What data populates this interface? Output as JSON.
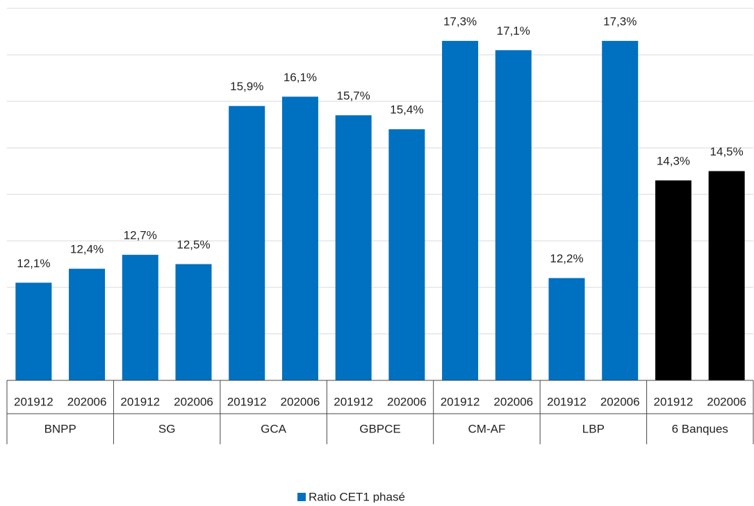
{
  "chart_data": {
    "type": "bar",
    "categories": [
      "201912",
      "202006",
      "201912",
      "202006",
      "201912",
      "202006",
      "201912",
      "202006",
      "201912",
      "202006",
      "201912",
      "202006",
      "201912",
      "202006"
    ],
    "groups": [
      "BNPP",
      "SG",
      "GCA",
      "GBPCE",
      "CM-AF",
      "LBP",
      "6 Banques"
    ],
    "series": [
      {
        "name": "Ratio CET1 phasé",
        "color": "#0070c0",
        "values": [
          12.1,
          12.4,
          12.7,
          12.5,
          15.9,
          16.1,
          15.7,
          15.4,
          17.3,
          17.1,
          12.2,
          17.3,
          14.3,
          14.5
        ],
        "value_labels": [
          "12,1%",
          "12,4%",
          "12,7%",
          "12,5%",
          "15,9%",
          "16,1%",
          "15,7%",
          "15,4%",
          "17,3%",
          "17,1%",
          "12,2%",
          "17,3%",
          "14,3%",
          "14,5%"
        ],
        "colors": [
          "#0070c0",
          "#0070c0",
          "#0070c0",
          "#0070c0",
          "#0070c0",
          "#0070c0",
          "#0070c0",
          "#0070c0",
          "#0070c0",
          "#0070c0",
          "#0070c0",
          "#0070c0",
          "#000000",
          "#000000"
        ]
      }
    ],
    "ylim": [
      10,
      18
    ],
    "yticks": [
      10,
      11,
      12,
      13,
      14,
      15,
      16,
      17,
      18
    ],
    "grid": true,
    "legend": "bottom"
  }
}
